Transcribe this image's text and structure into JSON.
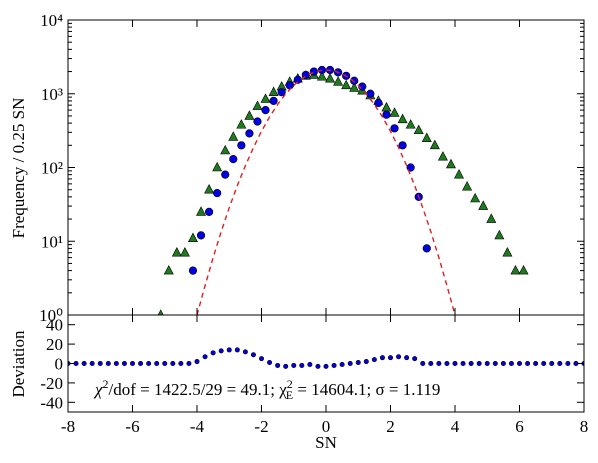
{
  "chart_data": [
    {
      "type": "scatter",
      "ylabel": "Frequency / 0.25 SN",
      "log_y": true,
      "xlim": [
        -8,
        8
      ],
      "xticks": [
        -8,
        -6,
        -4,
        -2,
        0,
        2,
        4,
        6,
        8
      ],
      "ylim": [
        1,
        10000
      ],
      "yticks": [
        {
          "value": 1,
          "label": "10⁰"
        },
        {
          "value": 10,
          "label": "10¹"
        },
        {
          "value": 100,
          "label": "10²"
        },
        {
          "value": 1000,
          "label": "10³"
        },
        {
          "value": 10000,
          "label": "10⁴"
        }
      ],
      "series": [
        {
          "marker": "triangle",
          "color": "#1f7a1f",
          "x": [
            -5.125,
            -4.875,
            -4.625,
            -4.375,
            -4.125,
            -3.875,
            -3.625,
            -3.375,
            -3.125,
            -2.875,
            -2.625,
            -2.375,
            -2.125,
            -1.875,
            -1.625,
            -1.375,
            -1.125,
            -0.875,
            -0.625,
            -0.375,
            -0.125,
            0.125,
            0.375,
            0.625,
            0.875,
            1.125,
            1.375,
            1.625,
            1.875,
            2.125,
            2.375,
            2.625,
            2.875,
            3.125,
            3.375,
            3.625,
            3.875,
            4.125,
            4.375,
            4.625,
            4.875,
            5.125,
            5.375,
            5.625,
            5.875,
            6.125
          ],
          "values": [
            1,
            4,
            7,
            7,
            11,
            25,
            50,
            100,
            170,
            260,
            380,
            500,
            680,
            850,
            1050,
            1250,
            1450,
            1600,
            1750,
            1800,
            1700,
            1600,
            1450,
            1300,
            1200,
            1100,
            950,
            800,
            650,
            550,
            450,
            380,
            320,
            250,
            200,
            140,
            110,
            80,
            55,
            38,
            30,
            20,
            12,
            7,
            4,
            4
          ]
        },
        {
          "marker": "circle",
          "color": "#0000e0",
          "x": [
            -4.125,
            -3.875,
            -3.625,
            -3.375,
            -3.125,
            -2.875,
            -2.625,
            -2.375,
            -2.125,
            -1.875,
            -1.625,
            -1.375,
            -1.125,
            -0.875,
            -0.625,
            -0.375,
            -0.125,
            0.125,
            0.375,
            0.625,
            0.875,
            1.125,
            1.375,
            1.625,
            1.875,
            2.125,
            2.375,
            2.625,
            2.875,
            3.125
          ],
          "values": [
            4,
            12,
            25,
            45,
            80,
            130,
            200,
            290,
            420,
            600,
            800,
            1050,
            1300,
            1550,
            1800,
            2000,
            2100,
            2100,
            1950,
            1750,
            1500,
            1250,
            1000,
            750,
            520,
            340,
            200,
            100,
            40,
            8
          ]
        },
        {
          "marker": "dashed-line",
          "color": "#e02020",
          "x": [
            -4,
            -3.75,
            -3.5,
            -3.25,
            -3,
            -2.75,
            -2.5,
            -2.25,
            -2,
            -1.75,
            -1.5,
            -1.25,
            -1,
            -0.75,
            -0.5,
            -0.25,
            0,
            0.25,
            0.5,
            0.75,
            1,
            1.25,
            1.5,
            1.75,
            2,
            2.25,
            2.5,
            2.75,
            3,
            3.25,
            3.5,
            3.75,
            4
          ],
          "values": [
            1.0,
            2.5,
            6.0,
            13.5,
            28.5,
            56.8,
            106,
            186,
            310,
            485,
            716,
            995,
            1302,
            1604,
            1863,
            2038,
            2100,
            2038,
            1863,
            1604,
            1302,
            995,
            716,
            485,
            310,
            186,
            106,
            56.8,
            28.5,
            13.5,
            6.0,
            2.5,
            1.0
          ]
        }
      ]
    },
    {
      "type": "scatter",
      "xlabel": "SN",
      "ylabel": "Deviation",
      "color": "#0000e0",
      "xlim": [
        -8,
        8
      ],
      "xticks": [
        -8,
        -6,
        -4,
        -2,
        0,
        2,
        4,
        6,
        8
      ],
      "ylim": [
        -50,
        50
      ],
      "yticks": [
        -40,
        -20,
        0,
        20,
        40
      ],
      "annotation": [
        "χ",
        "2",
        "/dof = 1422.5/29 = 49.1; χ",
        "2",
        "E",
        " = 14604.1; σ = 1.119"
      ],
      "x": [
        -8,
        -7.75,
        -7.5,
        -7.25,
        -7,
        -6.75,
        -6.5,
        -6.25,
        -6,
        -5.75,
        -5.5,
        -5.25,
        -5,
        -4.75,
        -4.5,
        -4.25,
        -4,
        -3.75,
        -3.5,
        -3.25,
        -3,
        -2.75,
        -2.5,
        -2.25,
        -2,
        -1.75,
        -1.5,
        -1.25,
        -1,
        -0.75,
        -0.5,
        -0.25,
        0,
        0.25,
        0.5,
        0.75,
        1,
        1.25,
        1.5,
        1.75,
        2,
        2.25,
        2.5,
        2.75,
        3,
        3.25,
        3.5,
        3.75,
        4,
        4.25,
        4.5,
        4.75,
        5,
        5.25,
        5.5,
        5.75,
        6,
        6.25,
        6.5,
        6.75,
        7,
        7.25,
        7.5,
        7.75,
        8
      ],
      "values": [
        0,
        0,
        0,
        0,
        0,
        0,
        0,
        0,
        0,
        0,
        0,
        0,
        0,
        0,
        0,
        0,
        2,
        7,
        11,
        13,
        14,
        14,
        12,
        9,
        5,
        1,
        -2,
        -3,
        -2,
        -2,
        -1,
        -3,
        -3,
        -2,
        -1,
        0,
        1,
        2,
        4,
        6,
        6,
        7,
        6,
        5,
        0,
        0,
        0,
        0,
        0,
        0,
        0,
        0,
        0,
        0,
        0,
        0,
        0,
        0,
        0,
        0,
        0,
        0,
        0,
        0,
        0
      ]
    }
  ]
}
